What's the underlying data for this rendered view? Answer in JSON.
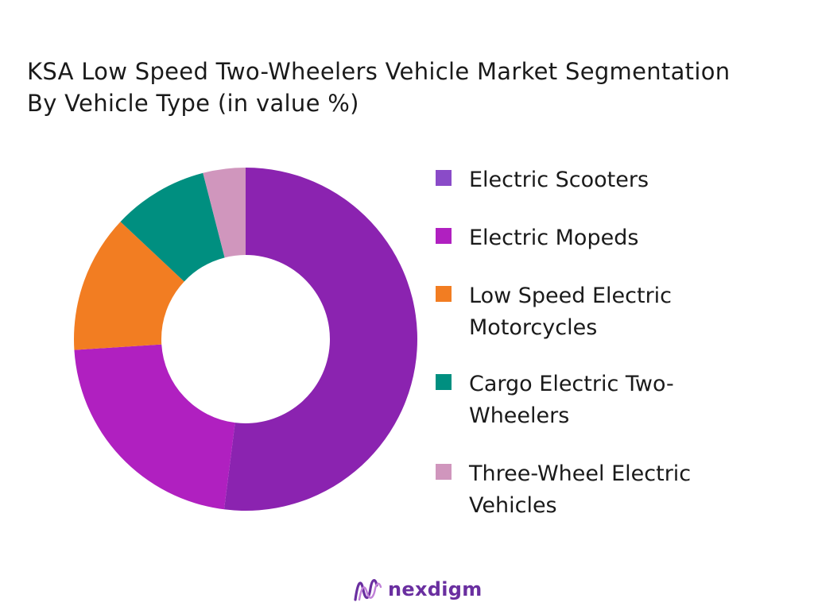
{
  "title": {
    "line1": "KSA Low Speed Two-Wheelers Vehicle Market Segmentation",
    "line2": "By Vehicle Type (in value %)"
  },
  "chart_data": {
    "type": "pie",
    "donut": true,
    "categories": [
      "Electric Scooters",
      "Electric Mopeds",
      "Low Speed Electric Motorcycles",
      "Cargo Electric Two-Wheelers",
      "Three-Wheel Electric Vehicles"
    ],
    "values": [
      52,
      22,
      13,
      9,
      4
    ],
    "colors": [
      "#8b23b0",
      "#b020c0",
      "#f27d22",
      "#008f80",
      "#d096bd"
    ],
    "legend_position": "right",
    "title": "KSA Low Speed Two-Wheelers Vehicle Market Segmentation By Vehicle Type (in value %)"
  },
  "legend": [
    {
      "label": "Electric Scooters",
      "color": "#8a4bc8"
    },
    {
      "label": "Electric Mopeds",
      "color": "#b020c0"
    },
    {
      "label": "Low Speed Electric Motorcycles",
      "color": "#f27d22"
    },
    {
      "label": "Cargo Electric Two-Wheelers",
      "color": "#008f80"
    },
    {
      "label": "Three-Wheel Electric Vehicles",
      "color": "#d096bd"
    }
  ],
  "brand": {
    "name": "nexdigm",
    "icon": "nexdigm-logo-icon",
    "color": "#6a2fa0"
  }
}
